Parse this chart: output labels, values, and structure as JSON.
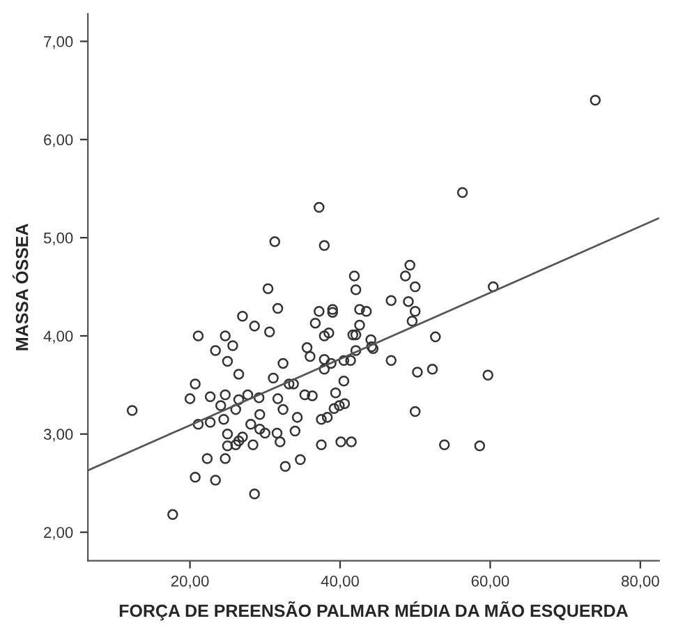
{
  "chart_data": {
    "type": "scatter",
    "xlabel": "FORÇA DE PREENSÃO PALMAR MÉDIA DA MÃO ESQUERDA",
    "ylabel": "MASSA ÓSSEA",
    "xlim": [
      6.4,
      82.5
    ],
    "ylim": [
      1.71,
      7.28
    ],
    "xticks": [
      {
        "value": 20,
        "label": "20,00"
      },
      {
        "value": 40,
        "label": "40,00"
      },
      {
        "value": 60,
        "label": "60,00"
      },
      {
        "value": 80,
        "label": "80,00"
      }
    ],
    "yticks": [
      {
        "value": 2,
        "label": "2,00"
      },
      {
        "value": 3,
        "label": "3,00"
      },
      {
        "value": 4,
        "label": "4,00"
      },
      {
        "value": 5,
        "label": "5,00"
      },
      {
        "value": 6,
        "label": "6,00"
      },
      {
        "value": 7,
        "label": "7,00"
      }
    ],
    "grid": false,
    "legend": false,
    "marker": "circle",
    "series": [
      {
        "color": "#333333",
        "x": [
          12.3,
          17.7,
          20.0,
          21.1,
          20.7,
          20.7,
          21.1,
          22.3,
          22.7,
          22.7,
          23.4,
          23.4,
          24.1,
          24.5,
          24.7,
          24.7,
          24.7,
          25.0,
          25.0,
          25.0,
          25.7,
          26.1,
          26.1,
          26.5,
          26.5,
          26.5,
          27.0,
          27.0,
          27.7,
          28.1,
          28.4,
          28.6,
          28.6,
          29.2,
          29.3,
          29.3,
          30.0,
          30.4,
          30.6,
          31.1,
          31.6,
          31.7,
          31.7,
          32.0,
          32.4,
          32.4,
          32.7,
          33.2,
          33.8,
          34.0,
          34.3,
          34.7,
          35.3,
          35.6,
          36.0,
          36.3,
          36.7,
          37.2,
          37.5,
          37.5,
          37.9,
          37.9,
          37.9,
          38.3,
          38.5,
          38.8,
          39.0,
          39.0,
          39.4,
          39.2,
          39.9,
          40.1,
          40.5,
          40.5,
          40.6,
          41.4,
          41.5,
          41.7,
          42.1,
          37.2,
          31.3,
          37.9,
          41.9,
          74.0,
          56.3,
          49.3,
          48.7,
          50.0,
          46.8,
          49.1,
          60.4,
          42.6,
          43.5,
          50.0,
          49.6,
          42.6,
          42.1,
          52.7,
          44.1,
          42.1,
          44.2,
          44.4,
          46.8,
          50.3,
          52.3,
          59.7,
          50.0,
          53.9,
          58.6
        ],
        "values": [
          3.24,
          2.18,
          3.36,
          4.0,
          2.56,
          3.51,
          3.1,
          2.75,
          3.38,
          3.12,
          3.85,
          2.53,
          3.29,
          3.15,
          4.0,
          2.75,
          3.4,
          3.74,
          3.0,
          2.88,
          3.9,
          3.25,
          2.89,
          3.61,
          3.35,
          2.93,
          2.97,
          4.2,
          3.4,
          3.1,
          2.89,
          4.1,
          2.39,
          3.37,
          3.05,
          3.2,
          3.01,
          4.48,
          4.04,
          3.57,
          3.01,
          4.28,
          3.36,
          2.92,
          3.72,
          3.25,
          2.67,
          3.51,
          3.51,
          3.03,
          3.17,
          2.74,
          3.4,
          3.88,
          3.79,
          3.39,
          4.13,
          4.25,
          2.89,
          3.15,
          4.0,
          3.76,
          3.66,
          3.17,
          4.03,
          3.72,
          4.27,
          4.24,
          3.42,
          3.26,
          3.29,
          2.92,
          3.75,
          3.54,
          3.31,
          3.75,
          2.92,
          4.01,
          4.47,
          5.31,
          4.96,
          4.92,
          4.61,
          6.4,
          5.46,
          4.72,
          4.61,
          4.5,
          4.36,
          4.35,
          4.5,
          4.27,
          4.25,
          4.25,
          4.15,
          4.11,
          4.01,
          3.99,
          3.96,
          3.85,
          3.89,
          3.87,
          3.75,
          3.63,
          3.66,
          3.6,
          3.23,
          2.89,
          2.88
        ]
      },
      {
        "type": "line",
        "marker": "none",
        "color": "#555555",
        "x": [
          6.4,
          82.5
        ],
        "values": [
          2.63,
          5.2
        ]
      }
    ]
  }
}
